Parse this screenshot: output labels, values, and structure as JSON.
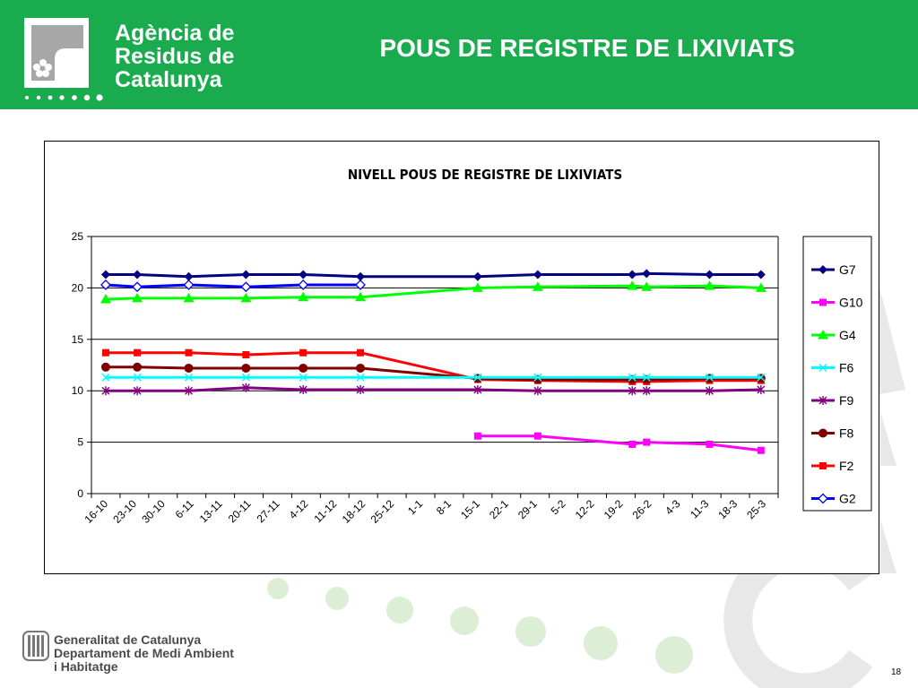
{
  "header": {
    "agency_name": [
      "Agència de",
      "Residus de",
      "Catalunya"
    ],
    "title": "POUS DE REGISTRE DE LIXIVIATS"
  },
  "footer": {
    "lines": [
      "Generalitat de Catalunya",
      "Departament de Medi Ambient",
      "i Habitatge"
    ],
    "page_number": "18"
  },
  "colors": {
    "header_green": "#1aab4f",
    "deco_green": "#dcefd6",
    "deco_grey": "#e8e8e8"
  },
  "chart_data": {
    "type": "line",
    "title": "NIVELL POUS DE REGISTRE DE LIXIVIATS",
    "xlabel": "",
    "ylabel": "",
    "ylim": [
      0,
      25
    ],
    "yticks": [
      0,
      5,
      10,
      15,
      20,
      25
    ],
    "grid": true,
    "legend_position": "right",
    "categories": [
      "16-10",
      "23-10",
      "30-10",
      "6-11",
      "13-11",
      "20-11",
      "27-11",
      "4-12",
      "11-12",
      "18-12",
      "25-12",
      "1-1",
      "8-1",
      "15-1",
      "22-1",
      "29-1",
      "5-2",
      "12-2",
      "19-2",
      "26-2",
      "4-3",
      "11-3",
      "18-3",
      "25-3"
    ],
    "series": [
      {
        "name": "G7",
        "color": "#000080",
        "marker": "diamond",
        "points": [
          [
            0,
            21.3
          ],
          [
            1.1,
            21.3
          ],
          [
            2.9,
            21.1
          ],
          [
            4.9,
            21.3
          ],
          [
            6.9,
            21.3
          ],
          [
            8.9,
            21.1
          ],
          [
            13.0,
            21.1
          ],
          [
            15.1,
            21.3
          ],
          [
            18.4,
            21.3
          ],
          [
            18.9,
            21.4
          ],
          [
            21.1,
            21.3
          ],
          [
            22.9,
            21.3
          ]
        ]
      },
      {
        "name": "G10",
        "color": "#ff00ff",
        "marker": "square",
        "points": [
          [
            13.0,
            5.6
          ],
          [
            15.1,
            5.6
          ],
          [
            18.4,
            4.8
          ],
          [
            18.9,
            5.0
          ],
          [
            21.1,
            4.8
          ],
          [
            22.9,
            4.2
          ]
        ]
      },
      {
        "name": "G4",
        "color": "#00ff00",
        "marker": "triangle",
        "points": [
          [
            0,
            18.9
          ],
          [
            1.1,
            19.0
          ],
          [
            2.9,
            19.0
          ],
          [
            4.9,
            19.0
          ],
          [
            6.9,
            19.1
          ],
          [
            8.9,
            19.1
          ],
          [
            13.0,
            20.0
          ],
          [
            15.1,
            20.1
          ],
          [
            18.4,
            20.2
          ],
          [
            18.9,
            20.1
          ],
          [
            21.1,
            20.2
          ],
          [
            22.9,
            20.0
          ]
        ]
      },
      {
        "name": "F6",
        "color": "#00ffff",
        "marker": "x",
        "points": [
          [
            0,
            11.3
          ],
          [
            1.1,
            11.3
          ],
          [
            2.9,
            11.3
          ],
          [
            4.9,
            11.3
          ],
          [
            6.9,
            11.3
          ],
          [
            8.9,
            11.3
          ],
          [
            13.0,
            11.3
          ],
          [
            15.1,
            11.3
          ],
          [
            18.4,
            11.3
          ],
          [
            18.9,
            11.3
          ],
          [
            21.1,
            11.3
          ],
          [
            22.9,
            11.3
          ]
        ]
      },
      {
        "name": "F9",
        "color": "#800080",
        "marker": "star",
        "points": [
          [
            0,
            10.0
          ],
          [
            1.1,
            10.0
          ],
          [
            2.9,
            10.0
          ],
          [
            4.9,
            10.3
          ],
          [
            6.9,
            10.1
          ],
          [
            8.9,
            10.1
          ],
          [
            13.0,
            10.1
          ],
          [
            15.1,
            10.0
          ],
          [
            18.4,
            10.0
          ],
          [
            18.9,
            10.0
          ],
          [
            21.1,
            10.0
          ],
          [
            22.9,
            10.1
          ]
        ]
      },
      {
        "name": "F8",
        "color": "#800000",
        "marker": "circle",
        "points": [
          [
            0,
            12.3
          ],
          [
            1.1,
            12.3
          ],
          [
            2.9,
            12.2
          ],
          [
            4.9,
            12.2
          ],
          [
            6.9,
            12.2
          ],
          [
            8.9,
            12.2
          ],
          [
            13.0,
            11.2
          ],
          [
            15.1,
            11.1
          ],
          [
            18.4,
            11.1
          ],
          [
            18.9,
            11.1
          ],
          [
            21.1,
            11.2
          ],
          [
            22.9,
            11.2
          ]
        ]
      },
      {
        "name": "F2",
        "color": "#ff0000",
        "marker": "square",
        "points": [
          [
            0,
            13.7
          ],
          [
            1.1,
            13.7
          ],
          [
            2.9,
            13.7
          ],
          [
            4.9,
            13.5
          ],
          [
            6.9,
            13.7
          ],
          [
            8.9,
            13.7
          ],
          [
            13.0,
            11.1
          ],
          [
            15.1,
            11.0
          ],
          [
            18.4,
            10.9
          ],
          [
            18.9,
            10.9
          ],
          [
            21.1,
            11.0
          ],
          [
            22.9,
            11.0
          ]
        ]
      },
      {
        "name": "G2",
        "color": "#0000ff",
        "marker": "diamond-open",
        "points": [
          [
            0,
            20.3
          ],
          [
            1.1,
            20.1
          ],
          [
            2.9,
            20.3
          ],
          [
            4.9,
            20.1
          ],
          [
            6.9,
            20.3
          ],
          [
            8.9,
            20.3
          ]
        ]
      }
    ]
  }
}
